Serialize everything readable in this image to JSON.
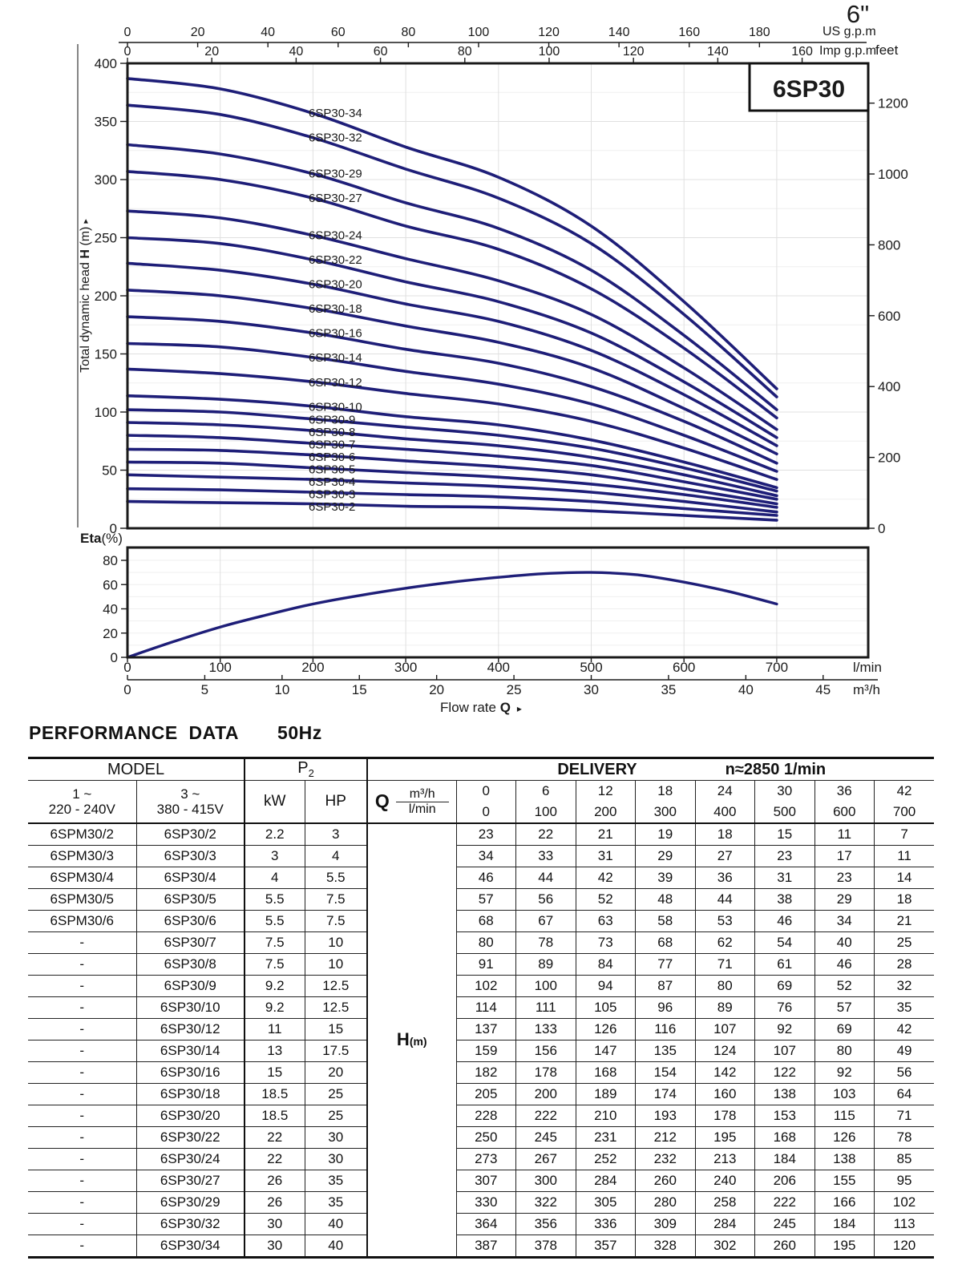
{
  "page": {
    "size_label": "6\"",
    "series_code": "6SP30",
    "accent_color": "#2222aa",
    "curve_color": "#1e1e78"
  },
  "chart_data": [
    {
      "type": "line",
      "id": "head-curves",
      "title": "6SP30",
      "ylabel_parts": {
        "pre": "Total dynamic head ",
        "bold": "H",
        "post": " (m)",
        "arrow": "▸"
      },
      "ylabel_right": "feet",
      "x_label_us": "US g.p.m",
      "x_label_imp": "Imp g.p.m",
      "ylim": [
        0,
        400
      ],
      "xlim_lmin": [
        0,
        800
      ],
      "grid": true,
      "x_lmin": [
        0,
        100,
        200,
        300,
        400,
        500,
        600,
        700
      ],
      "yticks_m": [
        0,
        50,
        100,
        150,
        200,
        250,
        300,
        350,
        400
      ],
      "yticks_feet": [
        0,
        200,
        400,
        600,
        800,
        1000,
        1200
      ],
      "xticks_us_gpm": [
        0,
        20,
        40,
        60,
        80,
        100,
        120,
        140,
        160,
        180
      ],
      "xticks_imp_gpm": [
        0,
        20,
        40,
        60,
        80,
        100,
        120,
        140,
        160
      ],
      "series": [
        {
          "name": "6SP30-34",
          "values": [
            387,
            378,
            357,
            328,
            302,
            260,
            195,
            120
          ]
        },
        {
          "name": "6SP30-32",
          "values": [
            364,
            356,
            336,
            309,
            284,
            245,
            184,
            113
          ]
        },
        {
          "name": "6SP30-29",
          "values": [
            330,
            322,
            305,
            280,
            258,
            222,
            166,
            102
          ]
        },
        {
          "name": "6SP30-27",
          "values": [
            307,
            300,
            284,
            260,
            240,
            206,
            155,
            95
          ]
        },
        {
          "name": "6SP30-24",
          "values": [
            273,
            267,
            252,
            232,
            213,
            184,
            138,
            85
          ]
        },
        {
          "name": "6SP30-22",
          "values": [
            250,
            245,
            231,
            212,
            195,
            168,
            126,
            78
          ]
        },
        {
          "name": "6SP30-20",
          "values": [
            228,
            222,
            210,
            193,
            178,
            153,
            115,
            71
          ]
        },
        {
          "name": "6SP30-18",
          "values": [
            205,
            200,
            189,
            174,
            160,
            138,
            103,
            64
          ]
        },
        {
          "name": "6SP30-16",
          "values": [
            182,
            178,
            168,
            154,
            142,
            122,
            92,
            56
          ]
        },
        {
          "name": "6SP30-14",
          "values": [
            159,
            156,
            147,
            135,
            124,
            107,
            80,
            49
          ]
        },
        {
          "name": "6SP30-12",
          "values": [
            137,
            133,
            126,
            116,
            107,
            92,
            69,
            42
          ]
        },
        {
          "name": "6SP30-10",
          "values": [
            114,
            111,
            105,
            96,
            89,
            76,
            57,
            35
          ]
        },
        {
          "name": "6SP30-9",
          "values": [
            102,
            100,
            94,
            87,
            80,
            69,
            52,
            32
          ]
        },
        {
          "name": "6SP30-8",
          "values": [
            91,
            89,
            84,
            77,
            71,
            61,
            46,
            28
          ]
        },
        {
          "name": "6SP30-7",
          "values": [
            80,
            78,
            73,
            68,
            62,
            54,
            40,
            25
          ]
        },
        {
          "name": "6SP30-6",
          "values": [
            68,
            67,
            63,
            58,
            53,
            46,
            34,
            21
          ]
        },
        {
          "name": "6SP30-5",
          "values": [
            57,
            56,
            52,
            48,
            44,
            38,
            29,
            18
          ]
        },
        {
          "name": "6SP30-4",
          "values": [
            46,
            44,
            42,
            39,
            36,
            31,
            23,
            14
          ]
        },
        {
          "name": "6SP30-3",
          "values": [
            34,
            33,
            31,
            29,
            27,
            23,
            17,
            11
          ]
        },
        {
          "name": "6SP30-2",
          "values": [
            23,
            22,
            21,
            19,
            18,
            15,
            11,
            7
          ]
        }
      ]
    },
    {
      "type": "line",
      "id": "efficiency",
      "ylabel_parts": {
        "bold": "Eta",
        "rest": "(%)"
      },
      "yticks": [
        0,
        20,
        40,
        60,
        80
      ],
      "ylim": [
        0,
        90
      ],
      "grid": true,
      "xticks_lmin": [
        0,
        100,
        200,
        300,
        400,
        500,
        600,
        700
      ],
      "xticks_m3h": [
        0,
        5,
        10,
        15,
        20,
        25,
        30,
        35,
        40,
        45
      ],
      "x_unit_lmin": "l/min",
      "x_unit_m3h": "m³/h",
      "xlabel_parts": {
        "pre": "Flow  rate  ",
        "bold": "Q",
        "arrow": "▸"
      },
      "points": [
        [
          0,
          0
        ],
        [
          50,
          13
        ],
        [
          100,
          25
        ],
        [
          150,
          35
        ],
        [
          200,
          44
        ],
        [
          250,
          51
        ],
        [
          300,
          57
        ],
        [
          350,
          62
        ],
        [
          400,
          66
        ],
        [
          450,
          69
        ],
        [
          500,
          70
        ],
        [
          550,
          68
        ],
        [
          600,
          62
        ],
        [
          650,
          54
        ],
        [
          700,
          44
        ]
      ]
    }
  ],
  "table": {
    "title": "PERFORMANCE DATA",
    "frequency": "50Hz",
    "header": {
      "model": "MODEL",
      "p2_base": "P",
      "p2_sub": "2",
      "delivery": "DELIVERY",
      "speed": "n≈2850 1/min",
      "col1": "1 ~",
      "col1b": "220 - 240V",
      "col2": "3 ~",
      "col2b": "380 - 415V",
      "kw": "kW",
      "hp": "HP",
      "q": "Q",
      "m3h": "m³/h",
      "lmin": "l/min",
      "h_base": "H",
      "h_sub": "(m)",
      "m3h_values": [
        "0",
        "6",
        "12",
        "18",
        "24",
        "30",
        "36",
        "42"
      ],
      "lmin_values": [
        "0",
        "100",
        "200",
        "300",
        "400",
        "500",
        "600",
        "700"
      ]
    },
    "rows": [
      {
        "model_1ph": "6SPM30/2",
        "model_3ph": "6SP30/2",
        "kw": "2.2",
        "hp": "3",
        "h": [
          23,
          22,
          21,
          19,
          18,
          15,
          11,
          7
        ]
      },
      {
        "model_1ph": "6SPM30/3",
        "model_3ph": "6SP30/3",
        "kw": "3",
        "hp": "4",
        "h": [
          34,
          33,
          31,
          29,
          27,
          23,
          17,
          11
        ]
      },
      {
        "model_1ph": "6SPM30/4",
        "model_3ph": "6SP30/4",
        "kw": "4",
        "hp": "5.5",
        "h": [
          46,
          44,
          42,
          39,
          36,
          31,
          23,
          14
        ]
      },
      {
        "model_1ph": "6SPM30/5",
        "model_3ph": "6SP30/5",
        "kw": "5.5",
        "hp": "7.5",
        "h": [
          57,
          56,
          52,
          48,
          44,
          38,
          29,
          18
        ]
      },
      {
        "model_1ph": "6SPM30/6",
        "model_3ph": "6SP30/6",
        "kw": "5.5",
        "hp": "7.5",
        "h": [
          68,
          67,
          63,
          58,
          53,
          46,
          34,
          21
        ]
      },
      {
        "model_1ph": "-",
        "model_3ph": "6SP30/7",
        "kw": "7.5",
        "hp": "10",
        "h": [
          80,
          78,
          73,
          68,
          62,
          54,
          40,
          25
        ]
      },
      {
        "model_1ph": "-",
        "model_3ph": "6SP30/8",
        "kw": "7.5",
        "hp": "10",
        "h": [
          91,
          89,
          84,
          77,
          71,
          61,
          46,
          28
        ]
      },
      {
        "model_1ph": "-",
        "model_3ph": "6SP30/9",
        "kw": "9.2",
        "hp": "12.5",
        "h": [
          102,
          100,
          94,
          87,
          80,
          69,
          52,
          32
        ]
      },
      {
        "model_1ph": "-",
        "model_3ph": "6SP30/10",
        "kw": "9.2",
        "hp": "12.5",
        "h": [
          114,
          111,
          105,
          96,
          89,
          76,
          57,
          35
        ]
      },
      {
        "model_1ph": "-",
        "model_3ph": "6SP30/12",
        "kw": "11",
        "hp": "15",
        "h": [
          137,
          133,
          126,
          116,
          107,
          92,
          69,
          42
        ]
      },
      {
        "model_1ph": "-",
        "model_3ph": "6SP30/14",
        "kw": "13",
        "hp": "17.5",
        "h": [
          159,
          156,
          147,
          135,
          124,
          107,
          80,
          49
        ]
      },
      {
        "model_1ph": "-",
        "model_3ph": "6SP30/16",
        "kw": "15",
        "hp": "20",
        "h": [
          182,
          178,
          168,
          154,
          142,
          122,
          92,
          56
        ]
      },
      {
        "model_1ph": "-",
        "model_3ph": "6SP30/18",
        "kw": "18.5",
        "hp": "25",
        "h": [
          205,
          200,
          189,
          174,
          160,
          138,
          103,
          64
        ]
      },
      {
        "model_1ph": "-",
        "model_3ph": "6SP30/20",
        "kw": "18.5",
        "hp": "25",
        "h": [
          228,
          222,
          210,
          193,
          178,
          153,
          115,
          71
        ]
      },
      {
        "model_1ph": "-",
        "model_3ph": "6SP30/22",
        "kw": "22",
        "hp": "30",
        "h": [
          250,
          245,
          231,
          212,
          195,
          168,
          126,
          78
        ]
      },
      {
        "model_1ph": "-",
        "model_3ph": "6SP30/24",
        "kw": "22",
        "hp": "30",
        "h": [
          273,
          267,
          252,
          232,
          213,
          184,
          138,
          85
        ]
      },
      {
        "model_1ph": "-",
        "model_3ph": "6SP30/27",
        "kw": "26",
        "hp": "35",
        "h": [
          307,
          300,
          284,
          260,
          240,
          206,
          155,
          95
        ]
      },
      {
        "model_1ph": "-",
        "model_3ph": "6SP30/29",
        "kw": "26",
        "hp": "35",
        "h": [
          330,
          322,
          305,
          280,
          258,
          222,
          166,
          102
        ]
      },
      {
        "model_1ph": "-",
        "model_3ph": "6SP30/32",
        "kw": "30",
        "hp": "40",
        "h": [
          364,
          356,
          336,
          309,
          284,
          245,
          184,
          113
        ]
      },
      {
        "model_1ph": "-",
        "model_3ph": "6SP30/34",
        "kw": "30",
        "hp": "40",
        "h": [
          387,
          378,
          357,
          328,
          302,
          260,
          195,
          120
        ]
      }
    ]
  }
}
